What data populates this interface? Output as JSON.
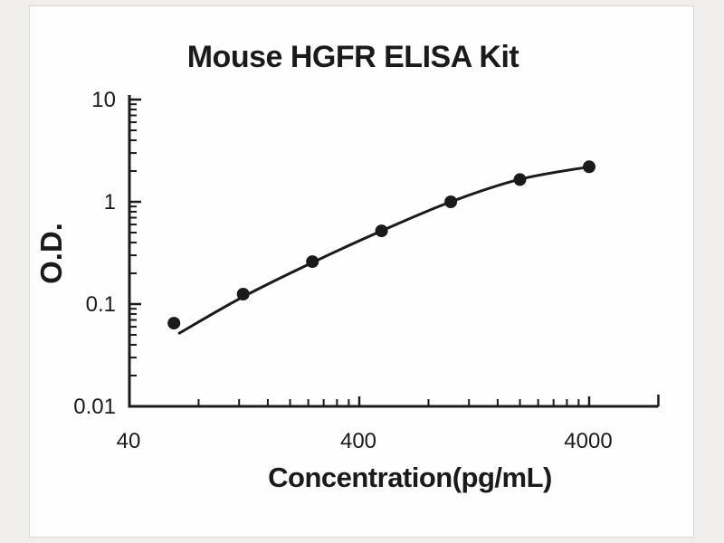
{
  "chart_data": {
    "type": "scatter",
    "title": "Mouse HGFR ELISA Kit",
    "xlabel": "Concentration(pg/mL)",
    "ylabel": "O.D.",
    "x_scale": "log",
    "y_scale": "log",
    "xlim": [
      40,
      8000
    ],
    "ylim": [
      0.01,
      10
    ],
    "grid": false,
    "legend": false,
    "x_ticks": [
      {
        "value": 40,
        "label": "40"
      },
      {
        "value": 400,
        "label": "400"
      },
      {
        "value": 4000,
        "label": "4000"
      }
    ],
    "y_ticks": [
      {
        "value": 10,
        "label": "10"
      },
      {
        "value": 1,
        "label": "1"
      },
      {
        "value": 0.1,
        "label": "0.1"
      },
      {
        "value": 0.01,
        "label": "0.01"
      }
    ],
    "series": [
      {
        "name": "standard-points",
        "type": "scatter",
        "x": [
          62.5,
          125,
          250,
          500,
          1000,
          2000,
          4000
        ],
        "y": [
          0.065,
          0.125,
          0.26,
          0.52,
          1.0,
          1.65,
          2.2
        ]
      },
      {
        "name": "fitted-curve",
        "type": "line",
        "x": [
          66,
          125,
          250,
          500,
          1000,
          2000,
          4000
        ],
        "y": [
          0.052,
          0.118,
          0.255,
          0.52,
          1.0,
          1.66,
          2.2
        ]
      }
    ]
  },
  "colors": {
    "ink": "#1a1a1a",
    "page_bg": "#f0efed",
    "panel_bg": "#fefefe",
    "panel_border": "#d7d6d4"
  }
}
